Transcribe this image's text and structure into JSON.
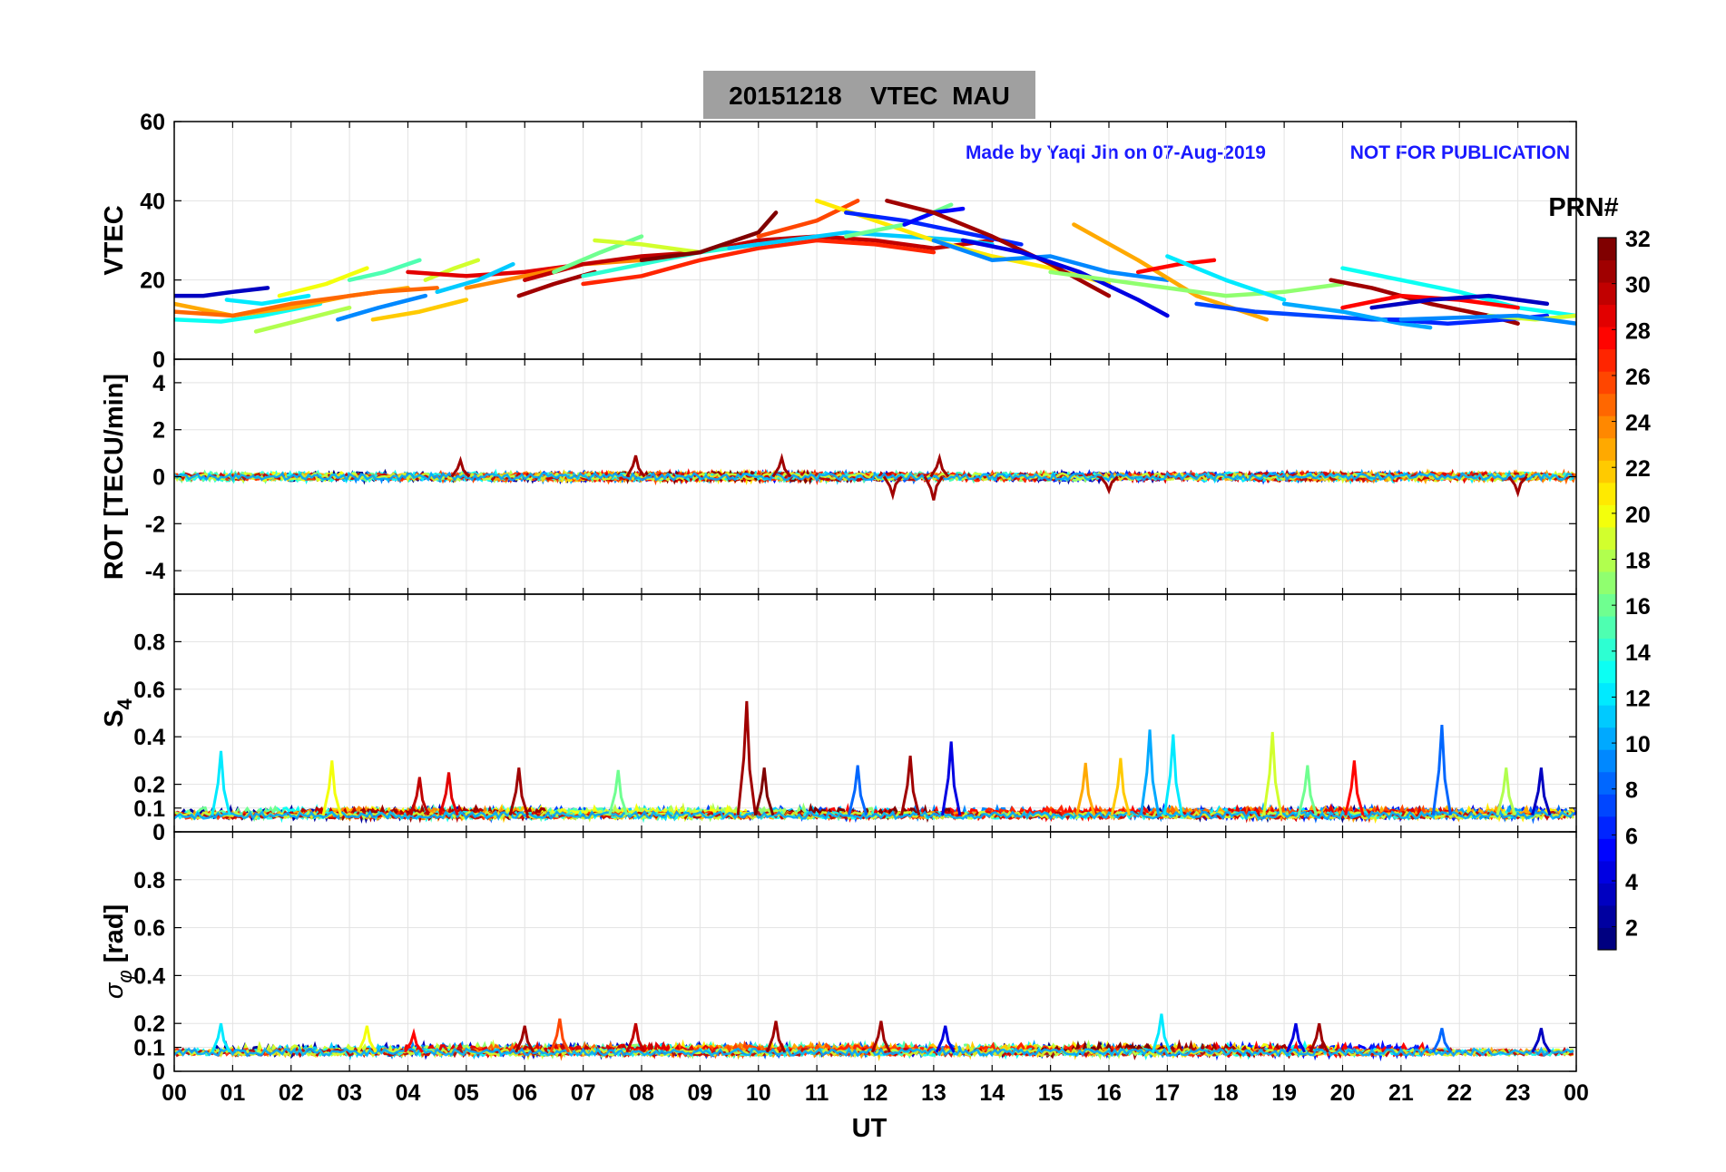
{
  "title": "20151218    VTEC  MAU",
  "note_left": "Made by Yaqi Jin on 07-Aug-2019",
  "note_right": "NOT FOR PUBLICATION",
  "x_label": "UT",
  "x_ticks": [
    "00",
    "01",
    "02",
    "03",
    "04",
    "05",
    "06",
    "07",
    "08",
    "09",
    "10",
    "11",
    "12",
    "13",
    "14",
    "15",
    "16",
    "17",
    "18",
    "19",
    "20",
    "21",
    "22",
    "23",
    "00"
  ],
  "colorbar": {
    "label": "PRN#",
    "ticks": [
      "2",
      "4",
      "6",
      "8",
      "10",
      "12",
      "14",
      "16",
      "18",
      "20",
      "22",
      "24",
      "26",
      "28",
      "30",
      "32"
    ],
    "range": [
      1,
      32
    ],
    "colormap": "jet"
  },
  "chart_data": [
    {
      "type": "line",
      "id": "vtec",
      "ylabel": "VTEC",
      "xlim": [
        0,
        24
      ],
      "ylim": [
        0,
        60
      ],
      "yticks": [
        "0",
        "20",
        "40",
        "60"
      ],
      "ytick_values": [
        0,
        20,
        40,
        60
      ],
      "grid": true,
      "series": [
        {
          "prn": 3,
          "x": [
            0.0,
            0.5,
            1.0,
            1.6
          ],
          "y": [
            16,
            16,
            17,
            18
          ]
        },
        {
          "prn": 13,
          "x": [
            0.0,
            0.8,
            1.5,
            2.5
          ],
          "y": [
            10,
            9.5,
            11,
            14
          ]
        },
        {
          "prn": 23,
          "x": [
            0.0,
            1.0,
            2.0,
            3.0,
            4.0
          ],
          "y": [
            14,
            11,
            13,
            16,
            18
          ]
        },
        {
          "prn": 25,
          "x": [
            0.0,
            1.0,
            2.0,
            3.5,
            4.5
          ],
          "y": [
            12,
            11,
            14,
            17,
            18
          ]
        },
        {
          "prn": 12,
          "x": [
            0.9,
            1.5,
            2.3
          ],
          "y": [
            15,
            14,
            16
          ]
        },
        {
          "prn": 18,
          "x": [
            1.4,
            2.2,
            3.0
          ],
          "y": [
            7,
            10,
            13
          ]
        },
        {
          "prn": 20,
          "x": [
            1.8,
            2.6,
            3.3
          ],
          "y": [
            16,
            19,
            23
          ]
        },
        {
          "prn": 9,
          "x": [
            2.8,
            3.5,
            4.3
          ],
          "y": [
            10,
            13,
            16
          ]
        },
        {
          "prn": 15,
          "x": [
            3.0,
            3.6,
            4.2
          ],
          "y": [
            20,
            22,
            25
          ]
        },
        {
          "prn": 22,
          "x": [
            3.4,
            4.2,
            5.0
          ],
          "y": [
            10,
            12,
            15
          ]
        },
        {
          "prn": 19,
          "x": [
            4.3,
            4.8,
            5.2
          ],
          "y": [
            20,
            23,
            25
          ]
        },
        {
          "prn": 29,
          "x": [
            4.0,
            5.0,
            6.0,
            7.0
          ],
          "y": [
            22,
            21,
            22,
            24
          ]
        },
        {
          "prn": 11,
          "x": [
            4.5,
            5.2,
            5.8
          ],
          "y": [
            17,
            20,
            24
          ]
        },
        {
          "prn": 24,
          "x": [
            5.0,
            6.0,
            7.0,
            8.0
          ],
          "y": [
            18,
            21,
            24,
            25
          ]
        },
        {
          "prn": 31,
          "x": [
            5.9,
            6.5,
            7.2
          ],
          "y": [
            16,
            19,
            22
          ]
        },
        {
          "prn": 30,
          "x": [
            6.0,
            7.0,
            8.0,
            9.0,
            10.0,
            11.0,
            12.0,
            13.0,
            14.0
          ],
          "y": [
            20,
            24,
            26,
            27,
            30,
            31,
            30,
            28,
            30
          ]
        },
        {
          "prn": 16,
          "x": [
            6.5,
            7.3,
            8.0
          ],
          "y": [
            22,
            27,
            31
          ]
        },
        {
          "prn": 19,
          "x": [
            7.2,
            8.0,
            9.0
          ],
          "y": [
            30,
            29,
            27
          ]
        },
        {
          "prn": 14,
          "x": [
            7.0,
            8.0,
            9.0,
            10.0
          ],
          "y": [
            21,
            24,
            27,
            29
          ]
        },
        {
          "prn": 27,
          "x": [
            7.0,
            8.0,
            9.0,
            10.0,
            11.0,
            12.0,
            13.0
          ],
          "y": [
            19,
            21,
            25,
            28,
            30,
            29,
            27
          ]
        },
        {
          "prn": 32,
          "x": [
            8.0,
            9.0,
            10.0,
            10.3
          ],
          "y": [
            25,
            27,
            32,
            37
          ]
        },
        {
          "prn": 11,
          "x": [
            9.5,
            10.5,
            11.5,
            12.5,
            13.5,
            14.0
          ],
          "y": [
            28,
            30,
            32,
            31,
            30,
            29
          ]
        },
        {
          "prn": 26,
          "x": [
            10.0,
            11.0,
            11.7
          ],
          "y": [
            31,
            35,
            40
          ]
        },
        {
          "prn": 21,
          "x": [
            11.0,
            12.0,
            13.0,
            14.0,
            15.0,
            16.0
          ],
          "y": [
            40,
            35,
            30,
            26,
            23,
            19
          ]
        },
        {
          "prn": 6,
          "x": [
            11.5,
            12.5,
            13.5,
            14.5
          ],
          "y": [
            37,
            35,
            32,
            29
          ]
        },
        {
          "prn": 16,
          "x": [
            11.5,
            12.5,
            13.3
          ],
          "y": [
            31,
            34,
            39
          ]
        },
        {
          "prn": 5,
          "x": [
            12.5,
            13.0,
            13.5
          ],
          "y": [
            34,
            37,
            38
          ]
        },
        {
          "prn": 31,
          "x": [
            12.2,
            13.0,
            14.0,
            15.0,
            16.0
          ],
          "y": [
            40,
            37,
            31,
            24,
            16
          ]
        },
        {
          "prn": 9,
          "x": [
            13.0,
            14.0,
            15.0,
            16.0,
            17.0
          ],
          "y": [
            30,
            25,
            26,
            22,
            20
          ]
        },
        {
          "prn": 4,
          "x": [
            13.5,
            14.5,
            15.5,
            16.5,
            17.0
          ],
          "y": [
            30,
            27,
            22,
            15,
            11
          ]
        },
        {
          "prn": 23,
          "x": [
            15.4,
            16.5,
            17.5,
            18.7
          ],
          "y": [
            34,
            25,
            16,
            10
          ]
        },
        {
          "prn": 17,
          "x": [
            15.0,
            16.0,
            17.0,
            18.0,
            19.0,
            20.0
          ],
          "y": [
            22,
            20,
            18,
            16,
            17,
            19
          ]
        },
        {
          "prn": 28,
          "x": [
            16.5,
            17.2,
            17.8
          ],
          "y": [
            22,
            24,
            25
          ]
        },
        {
          "prn": 12,
          "x": [
            17.0,
            18.0,
            19.0
          ],
          "y": [
            26,
            20,
            15
          ]
        },
        {
          "prn": 7,
          "x": [
            17.5,
            18.5,
            19.5,
            20.5,
            21.5
          ],
          "y": [
            14,
            12,
            11,
            10,
            10
          ]
        },
        {
          "prn": 10,
          "x": [
            19.0,
            20.0,
            21.0,
            21.5
          ],
          "y": [
            14,
            12,
            9,
            8
          ]
        },
        {
          "prn": 13,
          "x": [
            20.0,
            21.0,
            22.0,
            23.0,
            24.0
          ],
          "y": [
            23,
            20,
            17,
            13,
            11
          ]
        },
        {
          "prn": 31,
          "x": [
            19.8,
            20.5,
            21.5,
            22.5,
            23.0
          ],
          "y": [
            20,
            18,
            14,
            11,
            9
          ]
        },
        {
          "prn": 28,
          "x": [
            20.0,
            21.0,
            22.0,
            23.0
          ],
          "y": [
            13,
            16,
            15,
            13
          ]
        },
        {
          "prn": 3,
          "x": [
            20.5,
            21.5,
            22.5,
            23.5
          ],
          "y": [
            13,
            15,
            16,
            14
          ]
        },
        {
          "prn": 6,
          "x": [
            20.8,
            21.8,
            22.8,
            23.5
          ],
          "y": [
            10,
            9,
            10,
            11
          ]
        },
        {
          "prn": 19,
          "x": [
            22.5,
            23.3,
            24.0
          ],
          "y": [
            11,
            10,
            11
          ]
        },
        {
          "prn": 9,
          "x": [
            21.0,
            22.0,
            23.0,
            24.0
          ],
          "y": [
            10,
            10.5,
            11,
            9
          ]
        }
      ]
    },
    {
      "type": "line",
      "id": "rot",
      "ylabel": "ROT [TECU/min]",
      "xlim": [
        0,
        24
      ],
      "ylim": [
        -5,
        5
      ],
      "yticks": [
        "-4",
        "-2",
        "0",
        "2",
        "4"
      ],
      "ytick_values": [
        -4,
        -2,
        0,
        2,
        4
      ],
      "grid": true,
      "band_center": 0,
      "band_spread": 0.35,
      "spikes": [
        {
          "x": 4.9,
          "y": 0.7
        },
        {
          "x": 7.9,
          "y": 0.9
        },
        {
          "x": 10.4,
          "y": 0.8
        },
        {
          "x": 13.1,
          "y": 0.8
        },
        {
          "x": 13.0,
          "y": -1.0
        },
        {
          "x": 12.3,
          "y": -0.8
        },
        {
          "x": 16.0,
          "y": -0.6
        },
        {
          "x": 23.0,
          "y": -0.7
        }
      ]
    },
    {
      "type": "line",
      "id": "s4",
      "ylabel": "S",
      "ylabel_sub": "4",
      "xlim": [
        0,
        24
      ],
      "ylim": [
        0,
        1
      ],
      "yticks": [
        "0",
        "0.1",
        "0.2",
        "0.4",
        "0.6",
        "0.8"
      ],
      "ytick_values": [
        0,
        0.1,
        0.2,
        0.4,
        0.6,
        0.8
      ],
      "grid": true,
      "baseline": 0.07,
      "spikes": [
        {
          "x": 0.8,
          "y": 0.34,
          "prn": 12
        },
        {
          "x": 2.7,
          "y": 0.3,
          "prn": 20
        },
        {
          "x": 4.2,
          "y": 0.23,
          "prn": 30
        },
        {
          "x": 4.7,
          "y": 0.25,
          "prn": 29
        },
        {
          "x": 5.9,
          "y": 0.27,
          "prn": 31
        },
        {
          "x": 7.6,
          "y": 0.26,
          "prn": 16
        },
        {
          "x": 9.8,
          "y": 0.55,
          "prn": 31
        },
        {
          "x": 10.1,
          "y": 0.27,
          "prn": 32
        },
        {
          "x": 11.7,
          "y": 0.28,
          "prn": 8
        },
        {
          "x": 12.6,
          "y": 0.32,
          "prn": 31
        },
        {
          "x": 13.3,
          "y": 0.38,
          "prn": 4
        },
        {
          "x": 15.6,
          "y": 0.29,
          "prn": 23
        },
        {
          "x": 16.2,
          "y": 0.31,
          "prn": 22
        },
        {
          "x": 16.7,
          "y": 0.43,
          "prn": 10
        },
        {
          "x": 17.1,
          "y": 0.41,
          "prn": 12
        },
        {
          "x": 18.8,
          "y": 0.42,
          "prn": 19
        },
        {
          "x": 19.4,
          "y": 0.28,
          "prn": 16
        },
        {
          "x": 20.2,
          "y": 0.3,
          "prn": 28
        },
        {
          "x": 21.7,
          "y": 0.45,
          "prn": 8
        },
        {
          "x": 22.8,
          "y": 0.27,
          "prn": 18
        },
        {
          "x": 23.4,
          "y": 0.27,
          "prn": 3
        }
      ]
    },
    {
      "type": "line",
      "id": "sigma",
      "ylabel": "[rad]",
      "ylabel_symbol": "σ",
      "ylabel_sub": "φ",
      "xlim": [
        0,
        24
      ],
      "ylim": [
        0,
        1
      ],
      "yticks": [
        "0",
        "0.1",
        "0.2",
        "0.4",
        "0.6",
        "0.8"
      ],
      "ytick_values": [
        0,
        0.1,
        0.2,
        0.4,
        0.6,
        0.8
      ],
      "grid": true,
      "baseline": 0.08,
      "spikes": [
        {
          "x": 0.8,
          "y": 0.2,
          "prn": 12
        },
        {
          "x": 3.3,
          "y": 0.19,
          "prn": 20
        },
        {
          "x": 4.1,
          "y": 0.16,
          "prn": 28
        },
        {
          "x": 6.0,
          "y": 0.19,
          "prn": 31
        },
        {
          "x": 6.6,
          "y": 0.22,
          "prn": 26
        },
        {
          "x": 7.9,
          "y": 0.2,
          "prn": 30
        },
        {
          "x": 10.3,
          "y": 0.21,
          "prn": 31
        },
        {
          "x": 12.1,
          "y": 0.21,
          "prn": 31
        },
        {
          "x": 13.2,
          "y": 0.19,
          "prn": 4
        },
        {
          "x": 16.9,
          "y": 0.24,
          "prn": 12
        },
        {
          "x": 19.2,
          "y": 0.2,
          "prn": 4
        },
        {
          "x": 19.6,
          "y": 0.2,
          "prn": 31
        },
        {
          "x": 21.7,
          "y": 0.18,
          "prn": 8
        },
        {
          "x": 23.4,
          "y": 0.18,
          "prn": 3
        }
      ]
    }
  ]
}
